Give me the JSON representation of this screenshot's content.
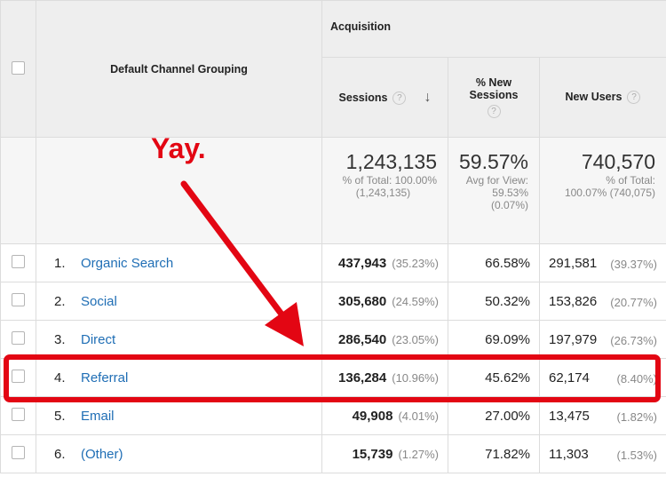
{
  "header": {
    "group": "Acquisition",
    "dimension": "Default Channel Grouping",
    "help_icon": "?",
    "sort_icon": "↓",
    "columns": [
      "Sessions",
      "% New Sessions",
      "New Users"
    ]
  },
  "totals": {
    "sessions": {
      "value": "1,243,135",
      "note": [
        "% of Total: 100.00%",
        "(1,243,135)"
      ]
    },
    "new_sessions": {
      "value": "59.57%",
      "note": [
        "Avg for View:",
        "59.53%",
        "(0.07%)"
      ]
    },
    "new_users": {
      "value": "740,570",
      "note": [
        "% of Total:",
        "100.07% (740,075)"
      ]
    }
  },
  "rows": [
    {
      "index": "1.",
      "channel": "Organic Search",
      "sessions": "437,943",
      "sessions_pct": "(35.23%)",
      "new_sessions": "66.58%",
      "new_users": "291,581",
      "new_users_pct": "(39.37%)"
    },
    {
      "index": "2.",
      "channel": "Social",
      "sessions": "305,680",
      "sessions_pct": "(24.59%)",
      "new_sessions": "50.32%",
      "new_users": "153,826",
      "new_users_pct": "(20.77%)"
    },
    {
      "index": "3.",
      "channel": "Direct",
      "sessions": "286,540",
      "sessions_pct": "(23.05%)",
      "new_sessions": "69.09%",
      "new_users": "197,979",
      "new_users_pct": "(26.73%)"
    },
    {
      "index": "4.",
      "channel": "Referral",
      "sessions": "136,284",
      "sessions_pct": "(10.96%)",
      "new_sessions": "45.62%",
      "new_users": "62,174",
      "new_users_pct": "(8.40%)"
    },
    {
      "index": "5.",
      "channel": "Email",
      "sessions": "49,908",
      "sessions_pct": "(4.01%)",
      "new_sessions": "27.00%",
      "new_users": "13,475",
      "new_users_pct": "(1.82%)"
    },
    {
      "index": "6.",
      "channel": "(Other)",
      "sessions": "15,739",
      "sessions_pct": "(1.27%)",
      "new_sessions": "71.82%",
      "new_users": "11,303",
      "new_users_pct": "(1.53%)"
    }
  ],
  "annotation": "Yay."
}
